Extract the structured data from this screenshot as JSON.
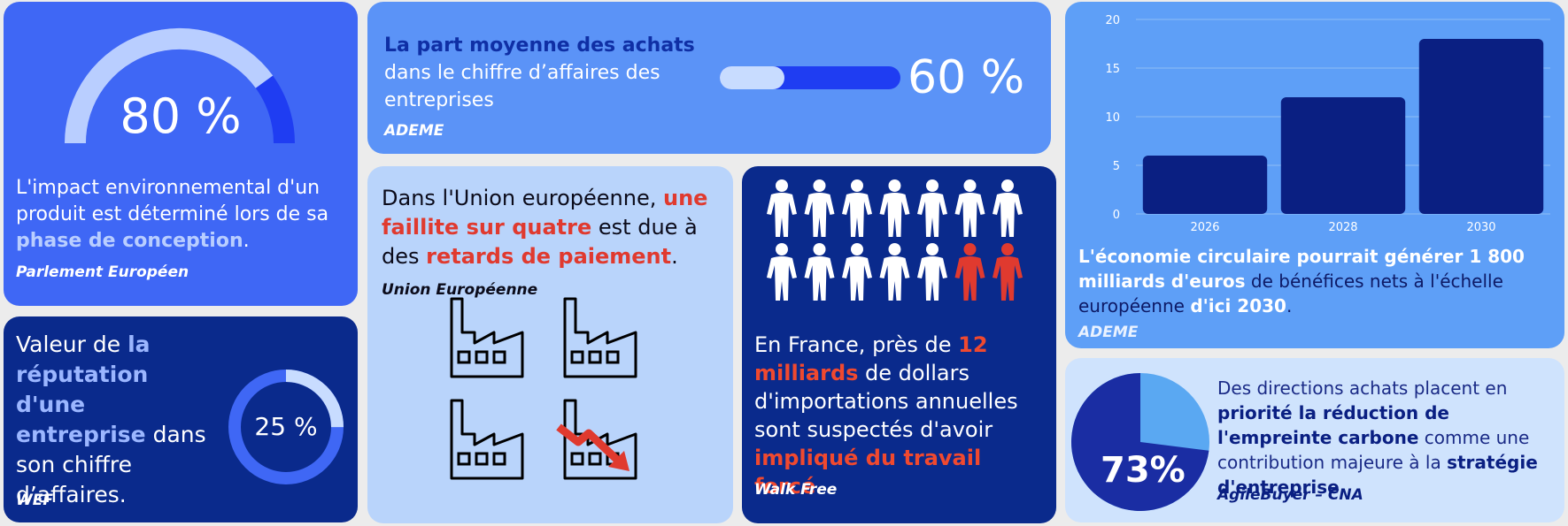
{
  "card1": {
    "value": "80 %",
    "gauge_fraction": 0.8,
    "text_1": "L'impact environnemental d'un produit est déterminé lors de sa ",
    "text_hl": "phase de conception",
    "text_end": ".",
    "source": "Parlement Européen"
  },
  "card2": {
    "text_1": "Valeur de ",
    "text_hl": "la réputation d'une entreprise",
    "text_2": " dans son chiffre d’affaires.",
    "value": "25 %",
    "ring_fraction": 0.25,
    "source": "WEF"
  },
  "card3": {
    "text_hl": "La part moyenne des achats",
    "text_2": " dans le chiffre d’affaires des entreprises",
    "value": "60 %",
    "bar_fraction": 0.6,
    "source": "ADEME"
  },
  "card4": {
    "text_1": "Dans l'Union européenne, ",
    "text_red1": "une faillite sur quatre",
    "text_2": " est due à des ",
    "text_red2": "retards de paiement",
    "text_end": ".",
    "source": "Union Européenne",
    "icons": [
      "factory-icon",
      "factory-icon",
      "factory-icon",
      "factory-decline-icon"
    ]
  },
  "card5": {
    "people_total": 14,
    "people_highlighted": 2,
    "text_1": "En France, près de ",
    "text_red1": "12 milliards",
    "text_2": " de dollars d'importations annuelles sont suspectés d'avoir ",
    "text_red2": "impliqué du travail forcé",
    "text_end": ".",
    "source": "Walk Free"
  },
  "card6": {
    "text_hl1": "L'économie circulaire pourrait générer 1 800 milliards d'euros",
    "text_2": " de bénéfices nets à l'échelle européenne ",
    "text_hl2": "d'ici 2030",
    "text_end": ".",
    "source": "ADEME"
  },
  "card7": {
    "value": "73%",
    "pie_fraction": 0.73,
    "text_1": "Des directions achats placent en ",
    "text_hl1": "priorité la réduction de l'empreinte carbone",
    "text_2": " comme une contribution majeure à la ",
    "text_hl2": "stratégie d'entreprise",
    "text_end": ".",
    "source": "AgileBuyer – CNA"
  },
  "chart_data": {
    "type": "bar",
    "categories": [
      "2026",
      "2028",
      "2030"
    ],
    "values": [
      6,
      12,
      18
    ],
    "title": "",
    "xlabel": "",
    "ylabel": "",
    "ylim": [
      0,
      20
    ],
    "yticks": [
      "0",
      "5",
      "10",
      "15",
      "20"
    ],
    "grid": true,
    "bar_color": "#0a1f82"
  },
  "colors": {
    "red": "#e03a2f",
    "navy": "#0a2a8c",
    "blue": "#3f67f5",
    "light": "#b9d4fb"
  }
}
